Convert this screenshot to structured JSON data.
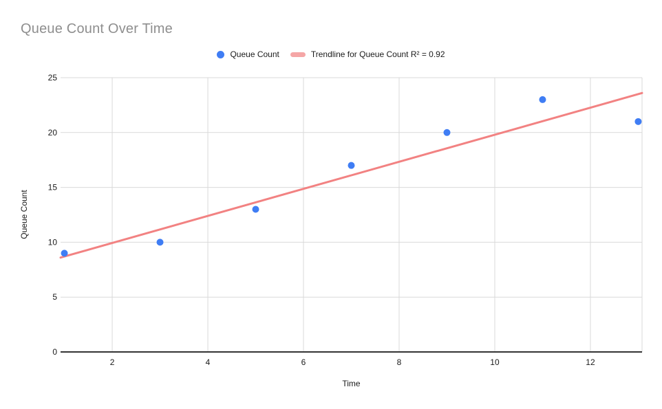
{
  "chart_data": {
    "type": "scatter",
    "title": "Queue Count Over Time",
    "xlabel": "Time",
    "ylabel": "Queue Count",
    "series": [
      {
        "name": "Queue Count",
        "x": [
          1,
          3,
          5,
          7,
          9,
          11,
          13
        ],
        "y": [
          9,
          10,
          13,
          17,
          20,
          23,
          21
        ]
      }
    ],
    "trendline": {
      "name": "Trendline for Queue Count R² = 0.92",
      "r2": 0.92,
      "x1": 0.92,
      "y1": 8.6,
      "x2": 13.08,
      "y2": 23.6
    },
    "xlim": [
      0.92,
      13.08
    ],
    "ylim": [
      0,
      25
    ],
    "xticks": [
      2,
      4,
      6,
      8,
      10,
      12
    ],
    "yticks": [
      0,
      5,
      10,
      15,
      20,
      25
    ],
    "grid": true,
    "legend_position": "top",
    "colors": {
      "point": "#3f7df4",
      "trendline": "#f28282",
      "trendline_swatch": "#f5a6a6",
      "gridline": "#d9d9d9",
      "axis_line": "#333333",
      "title_text": "#8e8e8e",
      "tick_text": "#1a1a1a"
    }
  }
}
